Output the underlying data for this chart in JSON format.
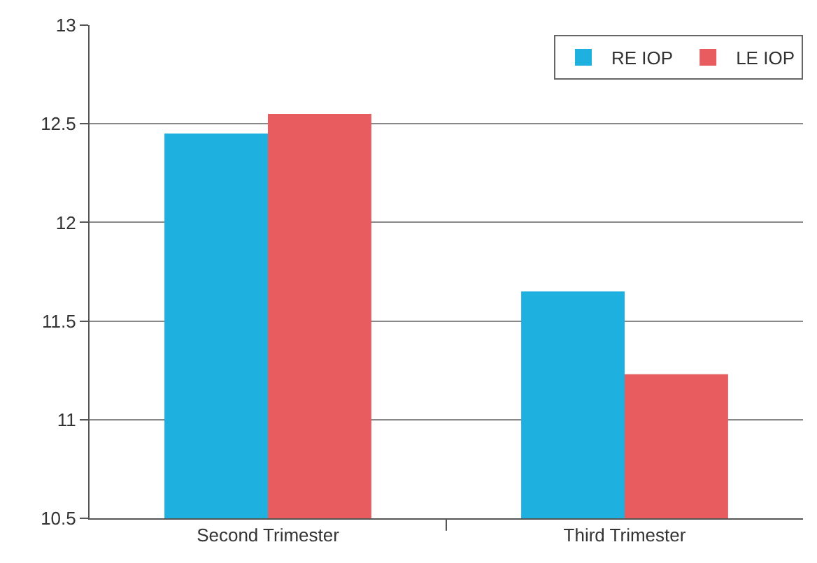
{
  "chart_data": {
    "type": "bar",
    "categories": [
      "Second Trimester",
      "Third Trimester"
    ],
    "series": [
      {
        "name": "RE IOP",
        "color": "#1eb1e0",
        "values": [
          12.45,
          11.65
        ]
      },
      {
        "name": "LE IOP",
        "color": "#e85b5f",
        "values": [
          12.55,
          11.23
        ]
      }
    ],
    "ylim": [
      10.5,
      13
    ],
    "yticks": [
      10.5,
      11,
      11.5,
      12,
      12.5,
      13
    ],
    "grid": "y",
    "legend": "top right"
  }
}
